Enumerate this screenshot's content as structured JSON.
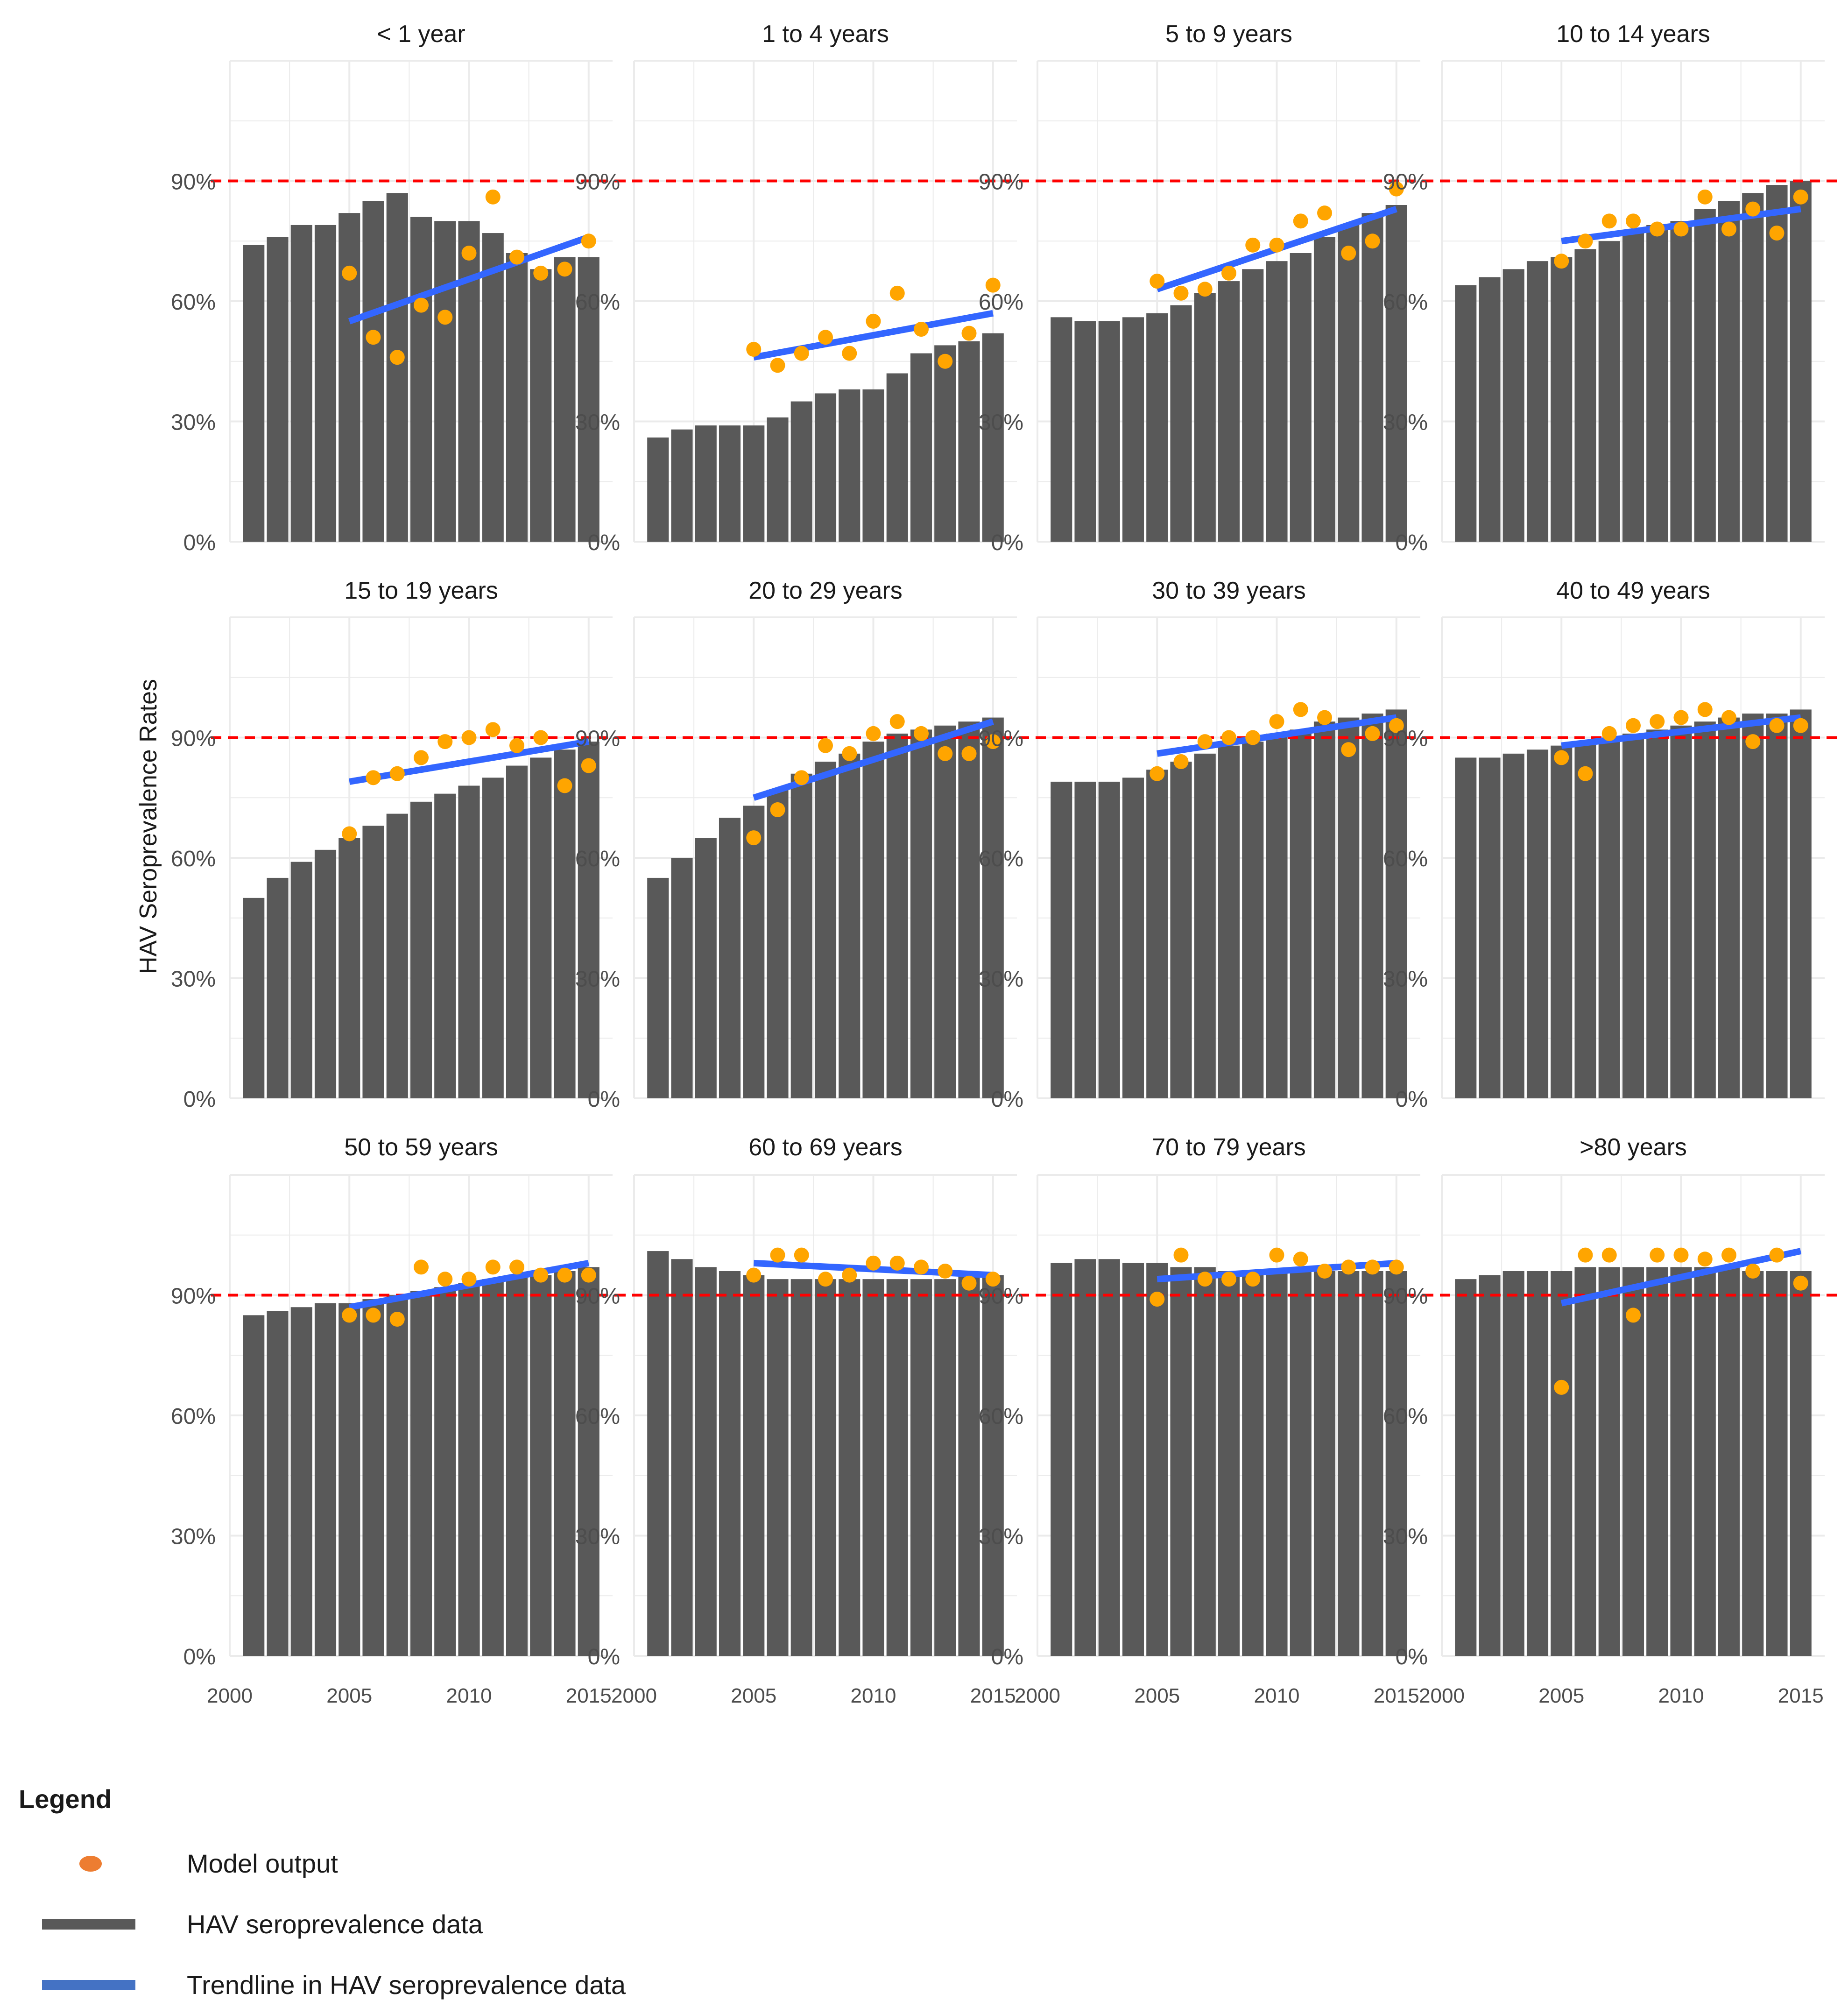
{
  "colors": {
    "bar": "#595959",
    "point": "#FFA500",
    "trend": "#3366FF",
    "threshold": "#FF0000",
    "grid": "#EBEBEB",
    "legend_point": "#ED7D31",
    "legend_trend": "#4472C4"
  },
  "axis": {
    "ylabel": "HAV Seroprevalence Rates",
    "y_ticks": [
      "0%",
      "30%",
      "60%",
      "90%"
    ],
    "x_ticks": [
      "2000",
      "2005",
      "2010",
      "2015"
    ]
  },
  "chart_data": [
    {
      "type": "bar",
      "title": "< 1 year",
      "x": [
        2001,
        2002,
        2003,
        2004,
        2005,
        2006,
        2007,
        2008,
        2009,
        2010,
        2011,
        2012,
        2013,
        2014,
        2015
      ],
      "values": [
        74,
        76,
        79,
        79,
        82,
        85,
        87,
        81,
        80,
        80,
        77,
        72,
        68,
        71,
        71
      ],
      "points_x": [
        2005,
        2006,
        2007,
        2008,
        2009,
        2010,
        2011,
        2012,
        2013,
        2014,
        2015
      ],
      "points": [
        67,
        51,
        46,
        59,
        56,
        72,
        86,
        71,
        67,
        68,
        75
      ],
      "trend": [
        [
          2005,
          55
        ],
        [
          2015,
          76
        ]
      ],
      "threshold": 90,
      "ylim": [
        0,
        120
      ],
      "xlim": [
        2000,
        2016
      ]
    },
    {
      "type": "bar",
      "title": "1 to 4 years",
      "x": [
        2001,
        2002,
        2003,
        2004,
        2005,
        2006,
        2007,
        2008,
        2009,
        2010,
        2011,
        2012,
        2013,
        2014,
        2015
      ],
      "values": [
        26,
        28,
        29,
        29,
        29,
        31,
        35,
        37,
        38,
        38,
        42,
        47,
        49,
        50,
        52
      ],
      "points_x": [
        2005,
        2006,
        2007,
        2008,
        2009,
        2010,
        2011,
        2012,
        2013,
        2014,
        2015
      ],
      "points": [
        48,
        44,
        47,
        51,
        47,
        55,
        62,
        53,
        45,
        52,
        64
      ],
      "trend": [
        [
          2005,
          46
        ],
        [
          2015,
          57
        ]
      ],
      "threshold": 90,
      "ylim": [
        0,
        120
      ],
      "xlim": [
        2000,
        2016
      ]
    },
    {
      "type": "bar",
      "title": "5 to 9 years",
      "x": [
        2001,
        2002,
        2003,
        2004,
        2005,
        2006,
        2007,
        2008,
        2009,
        2010,
        2011,
        2012,
        2013,
        2014,
        2015
      ],
      "values": [
        56,
        55,
        55,
        56,
        57,
        59,
        62,
        65,
        68,
        70,
        72,
        76,
        79,
        82,
        84
      ],
      "points_x": [
        2005,
        2006,
        2007,
        2008,
        2009,
        2010,
        2011,
        2012,
        2013,
        2014,
        2015
      ],
      "points": [
        65,
        62,
        63,
        67,
        74,
        74,
        80,
        82,
        72,
        75,
        88
      ],
      "trend": [
        [
          2005,
          63
        ],
        [
          2015,
          83
        ]
      ],
      "threshold": 90,
      "ylim": [
        0,
        120
      ],
      "xlim": [
        2000,
        2016
      ]
    },
    {
      "type": "bar",
      "title": "10 to 14 years",
      "x": [
        2001,
        2002,
        2003,
        2004,
        2005,
        2006,
        2007,
        2008,
        2009,
        2010,
        2011,
        2012,
        2013,
        2014,
        2015
      ],
      "values": [
        64,
        66,
        68,
        70,
        71,
        73,
        75,
        77,
        79,
        80,
        83,
        85,
        87,
        89,
        90
      ],
      "points_x": [
        2005,
        2006,
        2007,
        2008,
        2009,
        2010,
        2011,
        2012,
        2013,
        2014,
        2015
      ],
      "points": [
        70,
        75,
        80,
        80,
        78,
        78,
        86,
        78,
        83,
        77,
        86
      ],
      "trend": [
        [
          2005,
          75
        ],
        [
          2015,
          83
        ]
      ],
      "threshold": 90,
      "ylim": [
        0,
        120
      ],
      "xlim": [
        2000,
        2016
      ]
    },
    {
      "type": "bar",
      "title": "15 to 19 years",
      "x": [
        2001,
        2002,
        2003,
        2004,
        2005,
        2006,
        2007,
        2008,
        2009,
        2010,
        2011,
        2012,
        2013,
        2014,
        2015
      ],
      "values": [
        50,
        55,
        59,
        62,
        65,
        68,
        71,
        74,
        76,
        78,
        80,
        83,
        85,
        87,
        89
      ],
      "points_x": [
        2005,
        2006,
        2007,
        2008,
        2009,
        2010,
        2011,
        2012,
        2013,
        2014,
        2015
      ],
      "points": [
        66,
        80,
        81,
        85,
        89,
        90,
        92,
        88,
        90,
        78,
        83
      ],
      "trend": [
        [
          2005,
          79
        ],
        [
          2015,
          89
        ]
      ],
      "threshold": 90,
      "ylim": [
        0,
        120
      ],
      "xlim": [
        2000,
        2016
      ]
    },
    {
      "type": "bar",
      "title": "20 to 29 years",
      "x": [
        2001,
        2002,
        2003,
        2004,
        2005,
        2006,
        2007,
        2008,
        2009,
        2010,
        2011,
        2012,
        2013,
        2014,
        2015
      ],
      "values": [
        55,
        60,
        65,
        70,
        73,
        77,
        81,
        84,
        86,
        89,
        91,
        92,
        93,
        94,
        95
      ],
      "points_x": [
        2005,
        2006,
        2007,
        2008,
        2009,
        2010,
        2011,
        2012,
        2013,
        2014,
        2015
      ],
      "points": [
        65,
        72,
        80,
        88,
        86,
        91,
        94,
        91,
        86,
        86,
        89
      ],
      "trend": [
        [
          2005,
          75
        ],
        [
          2015,
          94
        ]
      ],
      "threshold": 90,
      "ylim": [
        0,
        120
      ],
      "xlim": [
        2000,
        2016
      ]
    },
    {
      "type": "bar",
      "title": "30 to 39 years",
      "x": [
        2001,
        2002,
        2003,
        2004,
        2005,
        2006,
        2007,
        2008,
        2009,
        2010,
        2011,
        2012,
        2013,
        2014,
        2015
      ],
      "values": [
        79,
        79,
        79,
        80,
        82,
        84,
        86,
        88,
        89,
        91,
        92,
        94,
        95,
        96,
        97
      ],
      "points_x": [
        2005,
        2006,
        2007,
        2008,
        2009,
        2010,
        2011,
        2012,
        2013,
        2014,
        2015
      ],
      "points": [
        81,
        84,
        89,
        90,
        90,
        94,
        97,
        95,
        87,
        91,
        93
      ],
      "trend": [
        [
          2005,
          86
        ],
        [
          2015,
          95
        ]
      ],
      "threshold": 90,
      "ylim": [
        0,
        120
      ],
      "xlim": [
        2000,
        2016
      ]
    },
    {
      "type": "bar",
      "title": "40 to 49 years",
      "x": [
        2001,
        2002,
        2003,
        2004,
        2005,
        2006,
        2007,
        2008,
        2009,
        2010,
        2011,
        2012,
        2013,
        2014,
        2015
      ],
      "values": [
        85,
        85,
        86,
        87,
        88,
        89,
        90,
        91,
        92,
        93,
        94,
        95,
        96,
        96,
        97
      ],
      "points_x": [
        2005,
        2006,
        2007,
        2008,
        2009,
        2010,
        2011,
        2012,
        2013,
        2014,
        2015
      ],
      "points": [
        85,
        81,
        91,
        93,
        94,
        95,
        97,
        95,
        89,
        93,
        93
      ],
      "trend": [
        [
          2005,
          88
        ],
        [
          2015,
          95
        ]
      ],
      "threshold": 90,
      "ylim": [
        0,
        120
      ],
      "xlim": [
        2000,
        2016
      ]
    },
    {
      "type": "bar",
      "title": "50 to 59 years",
      "x": [
        2001,
        2002,
        2003,
        2004,
        2005,
        2006,
        2007,
        2008,
        2009,
        2010,
        2011,
        2012,
        2013,
        2014,
        2015
      ],
      "values": [
        85,
        86,
        87,
        88,
        88,
        89,
        90,
        91,
        92,
        93,
        94,
        95,
        95,
        96,
        97
      ],
      "points_x": [
        2005,
        2006,
        2007,
        2008,
        2009,
        2010,
        2011,
        2012,
        2013,
        2014,
        2015
      ],
      "points": [
        85,
        85,
        84,
        97,
        94,
        94,
        97,
        97,
        95,
        95,
        95
      ],
      "trend": [
        [
          2005,
          87
        ],
        [
          2015,
          98
        ]
      ],
      "threshold": 90,
      "ylim": [
        0,
        120
      ],
      "xlim": [
        2000,
        2016
      ]
    },
    {
      "type": "bar",
      "title": "60 to 69 years",
      "x": [
        2001,
        2002,
        2003,
        2004,
        2005,
        2006,
        2007,
        2008,
        2009,
        2010,
        2011,
        2012,
        2013,
        2014,
        2015
      ],
      "values": [
        101,
        99,
        97,
        96,
        95,
        94,
        94,
        94,
        94,
        94,
        94,
        94,
        94,
        95,
        95
      ],
      "points_x": [
        2005,
        2006,
        2007,
        2008,
        2009,
        2010,
        2011,
        2012,
        2013,
        2014,
        2015
      ],
      "points": [
        95,
        100,
        100,
        94,
        95,
        98,
        98,
        97,
        96,
        93,
        94
      ],
      "trend": [
        [
          2005,
          98
        ],
        [
          2015,
          95
        ]
      ],
      "threshold": 90,
      "ylim": [
        0,
        120
      ],
      "xlim": [
        2000,
        2016
      ]
    },
    {
      "type": "bar",
      "title": "70 to 79 years",
      "x": [
        2001,
        2002,
        2003,
        2004,
        2005,
        2006,
        2007,
        2008,
        2009,
        2010,
        2011,
        2012,
        2013,
        2014,
        2015
      ],
      "values": [
        98,
        99,
        99,
        98,
        98,
        97,
        97,
        96,
        96,
        96,
        96,
        96,
        96,
        96,
        96
      ],
      "points_x": [
        2005,
        2006,
        2007,
        2008,
        2009,
        2010,
        2011,
        2012,
        2013,
        2014,
        2015
      ],
      "points": [
        89,
        100,
        94,
        94,
        94,
        100,
        99,
        96,
        97,
        97,
        97
      ],
      "trend": [
        [
          2005,
          94
        ],
        [
          2015,
          98
        ]
      ],
      "threshold": 90,
      "ylim": [
        0,
        120
      ],
      "xlim": [
        2000,
        2016
      ]
    },
    {
      "type": "bar",
      "title": ">80 years",
      "x": [
        2001,
        2002,
        2003,
        2004,
        2005,
        2006,
        2007,
        2008,
        2009,
        2010,
        2011,
        2012,
        2013,
        2014,
        2015
      ],
      "values": [
        94,
        95,
        96,
        96,
        96,
        97,
        97,
        97,
        97,
        97,
        97,
        97,
        96,
        96,
        96
      ],
      "points_x": [
        2005,
        2006,
        2007,
        2008,
        2009,
        2010,
        2011,
        2012,
        2013,
        2014,
        2015
      ],
      "points": [
        67,
        100,
        100,
        85,
        100,
        100,
        99,
        100,
        96,
        100,
        93
      ],
      "trend": [
        [
          2005,
          88
        ],
        [
          2015,
          101
        ]
      ],
      "threshold": 90,
      "ylim": [
        0,
        120
      ],
      "xlim": [
        2000,
        2016
      ]
    }
  ],
  "legend": {
    "title": "Legend",
    "items": [
      {
        "key": "point",
        "label": "Model output"
      },
      {
        "key": "bar",
        "label": "HAV seroprevalence data"
      },
      {
        "key": "line",
        "label": "Trendline in HAV seroprevalence data"
      }
    ]
  }
}
